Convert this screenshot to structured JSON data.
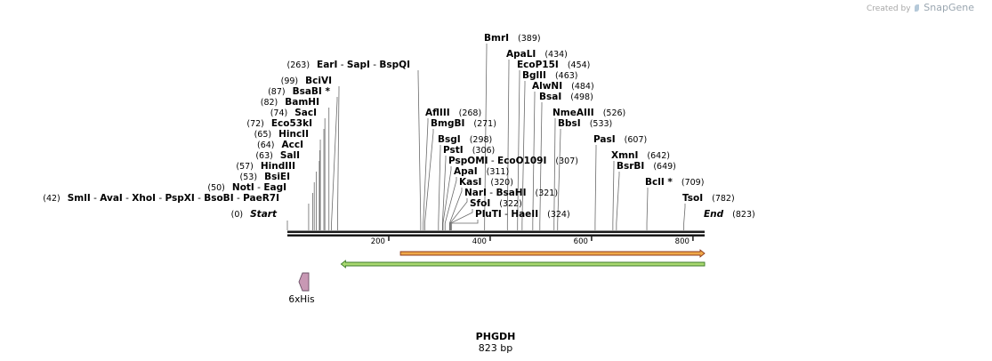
{
  "credit": {
    "prefix": "Created by",
    "brand": "SnapGene"
  },
  "sequence": {
    "name": "PHGDH",
    "length_label": "823 bp",
    "length": 823
  },
  "axis": {
    "ticks": [
      200,
      400,
      600,
      800
    ]
  },
  "map_range": {
    "start": 0,
    "end": 823
  },
  "sites": [
    {
      "id": "smli",
      "parts": [
        {
          "text": "(42)"
        },
        {
          "text": "SmlI",
          "bold": true
        },
        {
          "text": " - "
        },
        {
          "text": "AvaI",
          "bold": true
        },
        {
          "text": " - "
        },
        {
          "text": "XhoI",
          "bold": true
        },
        {
          "text": " - "
        },
        {
          "text": "PspXI",
          "bold": true
        },
        {
          "text": " - "
        },
        {
          "text": "BsoBI",
          "bold": true
        },
        {
          "text": " - "
        },
        {
          "text": "PaeR7I",
          "bold": true
        }
      ],
      "pos": 42
    },
    {
      "id": "noti",
      "parts": [
        {
          "text": "(50)"
        },
        {
          "text": "NotI",
          "bold": true
        },
        {
          "text": " - "
        },
        {
          "text": "EagI",
          "bold": true
        }
      ],
      "pos": 50
    },
    {
      "id": "bsiei",
      "parts": [
        {
          "text": "(53)"
        },
        {
          "text": "BsiEI",
          "bold": true
        }
      ],
      "pos": 53
    },
    {
      "id": "hindiii",
      "parts": [
        {
          "text": "(57)"
        },
        {
          "text": "HindIII",
          "bold": true
        }
      ],
      "pos": 57
    },
    {
      "id": "sali",
      "parts": [
        {
          "text": "(63)"
        },
        {
          "text": "SalI",
          "bold": true
        }
      ],
      "pos": 63
    },
    {
      "id": "acci",
      "parts": [
        {
          "text": "(64)"
        },
        {
          "text": "AccI",
          "bold": true
        }
      ],
      "pos": 64
    },
    {
      "id": "hincii",
      "parts": [
        {
          "text": "(65)"
        },
        {
          "text": "HincII",
          "bold": true
        }
      ],
      "pos": 65
    },
    {
      "id": "eco53ki",
      "parts": [
        {
          "text": "(72)"
        },
        {
          "text": "Eco53kI",
          "bold": true
        }
      ],
      "pos": 72
    },
    {
      "id": "saci",
      "parts": [
        {
          "text": "(74)"
        },
        {
          "text": "SacI",
          "bold": true
        }
      ],
      "pos": 74
    },
    {
      "id": "bamhi",
      "parts": [
        {
          "text": "(82)"
        },
        {
          "text": "BamHI",
          "bold": true
        }
      ],
      "pos": 82
    },
    {
      "id": "bsabi",
      "parts": [
        {
          "text": "(87)"
        },
        {
          "text": "BsaBI *",
          "bold": true
        }
      ],
      "pos": 87
    },
    {
      "id": "bcivi",
      "parts": [
        {
          "text": "(99)"
        },
        {
          "text": "BciVI",
          "bold": true
        }
      ],
      "pos": 99
    },
    {
      "id": "eari",
      "parts": [
        {
          "text": "(263)"
        },
        {
          "text": "EarI",
          "bold": true
        },
        {
          "text": " - "
        },
        {
          "text": "SapI",
          "bold": true
        },
        {
          "text": " - "
        },
        {
          "text": "BspQI",
          "bold": true
        }
      ],
      "pos": 263
    },
    {
      "id": "afliii",
      "parts": [
        {
          "text": "AflIII",
          "bold": true
        },
        {
          "text": "(268)"
        }
      ],
      "pos": 268
    },
    {
      "id": "bmgbi",
      "parts": [
        {
          "text": "BmgBI",
          "bold": true
        },
        {
          "text": "(271)"
        }
      ],
      "pos": 271
    },
    {
      "id": "bsgi",
      "parts": [
        {
          "text": "BsgI",
          "bold": true
        },
        {
          "text": "(298)"
        }
      ],
      "pos": 298
    },
    {
      "id": "psti",
      "parts": [
        {
          "text": "PstI",
          "bold": true
        },
        {
          "text": "(306)"
        }
      ],
      "pos": 306
    },
    {
      "id": "pspomi",
      "parts": [
        {
          "text": "PspOMI",
          "bold": true
        },
        {
          "text": " - "
        },
        {
          "text": "EcoO109I",
          "bold": true
        },
        {
          "text": "(307)"
        }
      ],
      "pos": 307
    },
    {
      "id": "apai",
      "parts": [
        {
          "text": "ApaI",
          "bold": true
        },
        {
          "text": "(311)"
        }
      ],
      "pos": 311
    },
    {
      "id": "kasi",
      "parts": [
        {
          "text": "KasI",
          "bold": true
        },
        {
          "text": "(320)"
        }
      ],
      "pos": 320
    },
    {
      "id": "nari",
      "parts": [
        {
          "text": "NarI",
          "bold": true
        },
        {
          "text": " - "
        },
        {
          "text": "BsaHI",
          "bold": true
        },
        {
          "text": "(321)"
        }
      ],
      "pos": 321
    },
    {
      "id": "sfoi",
      "parts": [
        {
          "text": "SfoI",
          "bold": true
        },
        {
          "text": "(322)"
        }
      ],
      "pos": 322
    },
    {
      "id": "pluti",
      "parts": [
        {
          "text": "PluTI",
          "bold": true
        },
        {
          "text": " - "
        },
        {
          "text": "HaeII",
          "bold": true
        },
        {
          "text": "(324)"
        }
      ],
      "pos": 324
    },
    {
      "id": "bmri",
      "parts": [
        {
          "text": "BmrI",
          "bold": true
        },
        {
          "text": "(389)"
        }
      ],
      "pos": 389
    },
    {
      "id": "apali",
      "parts": [
        {
          "text": "ApaLI",
          "bold": true
        },
        {
          "text": "(434)"
        }
      ],
      "pos": 434
    },
    {
      "id": "ecop15i",
      "parts": [
        {
          "text": "EcoP15I",
          "bold": true
        },
        {
          "text": "(454)"
        }
      ],
      "pos": 454
    },
    {
      "id": "bglii",
      "parts": [
        {
          "text": "BglII",
          "bold": true
        },
        {
          "text": "(463)"
        }
      ],
      "pos": 463
    },
    {
      "id": "alwni",
      "parts": [
        {
          "text": "AlwNI",
          "bold": true
        },
        {
          "text": "(484)"
        }
      ],
      "pos": 484
    },
    {
      "id": "bsai",
      "parts": [
        {
          "text": "BsaI",
          "bold": true
        },
        {
          "text": "(498)"
        }
      ],
      "pos": 498
    },
    {
      "id": "nmeaiii",
      "parts": [
        {
          "text": "NmeAIII",
          "bold": true
        },
        {
          "text": "(526)"
        }
      ],
      "pos": 526
    },
    {
      "id": "bbsi",
      "parts": [
        {
          "text": "BbsI",
          "bold": true
        },
        {
          "text": "(533)"
        }
      ],
      "pos": 533
    },
    {
      "id": "pasi",
      "parts": [
        {
          "text": "PasI",
          "bold": true
        },
        {
          "text": "(607)"
        }
      ],
      "pos": 607
    },
    {
      "id": "xmni",
      "parts": [
        {
          "text": "XmnI",
          "bold": true
        },
        {
          "text": "(642)"
        }
      ],
      "pos": 642
    },
    {
      "id": "bsrbi",
      "parts": [
        {
          "text": "BsrBI",
          "bold": true
        },
        {
          "text": "(649)"
        }
      ],
      "pos": 649
    },
    {
      "id": "bcli",
      "parts": [
        {
          "text": "BclI *",
          "bold": true
        },
        {
          "text": "(709)"
        }
      ],
      "pos": 709
    },
    {
      "id": "tsoi",
      "parts": [
        {
          "text": "TsoI",
          "bold": true
        },
        {
          "text": "(782)"
        }
      ],
      "pos": 782
    }
  ],
  "ends": {
    "start": {
      "parts": [
        {
          "text": "(0)"
        },
        {
          "text": "Start",
          "bold": true,
          "italic": true
        }
      ],
      "pos": 0
    },
    "end": {
      "parts": [
        {
          "text": "End",
          "bold": true,
          "italic": true
        },
        {
          "text": "(823)"
        }
      ],
      "pos": 823
    }
  },
  "features": [
    {
      "id": "orange-feature",
      "kind": "arrow-forward",
      "from": 223,
      "to": 823,
      "color": "#f0a848",
      "outline": "#8c3a1c",
      "label": ""
    },
    {
      "id": "green-feature",
      "kind": "arrow-reverse",
      "from": 106,
      "to": 823,
      "color": "#a8d870",
      "outline": "#3c7a28",
      "label": ""
    },
    {
      "id": "his-tag",
      "kind": "tag-reverse",
      "from": 24,
      "to": 42,
      "color": "#c898b4",
      "outline": "#6a5066",
      "label": "6xHis"
    }
  ]
}
